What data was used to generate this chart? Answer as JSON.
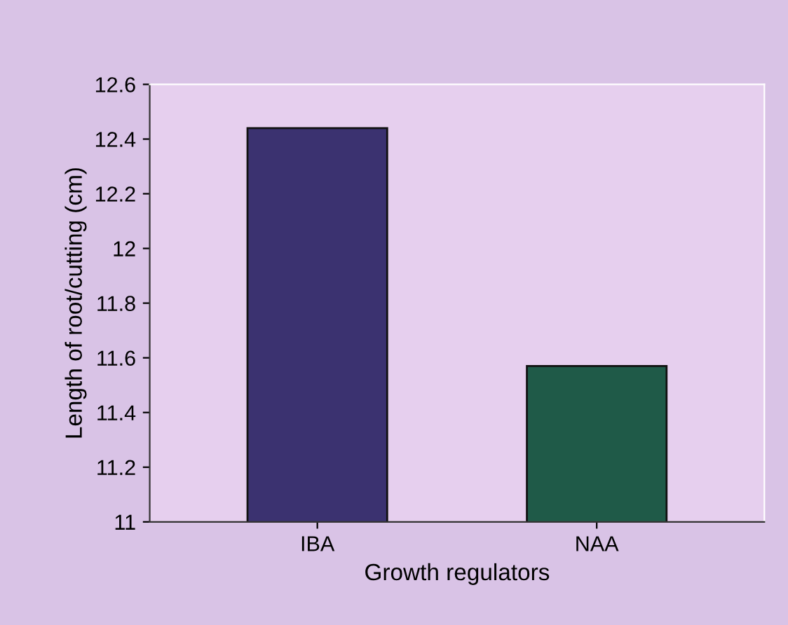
{
  "chart_data": {
    "type": "bar",
    "xlabel": "Growth regulators",
    "ylabel": "Length of root/cutting (cm)",
    "categories": [
      "IBA",
      "NAA"
    ],
    "values": [
      12.44,
      11.57
    ],
    "colors": [
      "#3b3270",
      "#1f5a48"
    ],
    "ylim": [
      11,
      12.6
    ],
    "yticks": [
      11,
      11.2,
      11.4,
      11.6,
      11.8,
      12,
      12.2,
      12.4,
      12.6
    ],
    "grid": false,
    "legend": false
  }
}
